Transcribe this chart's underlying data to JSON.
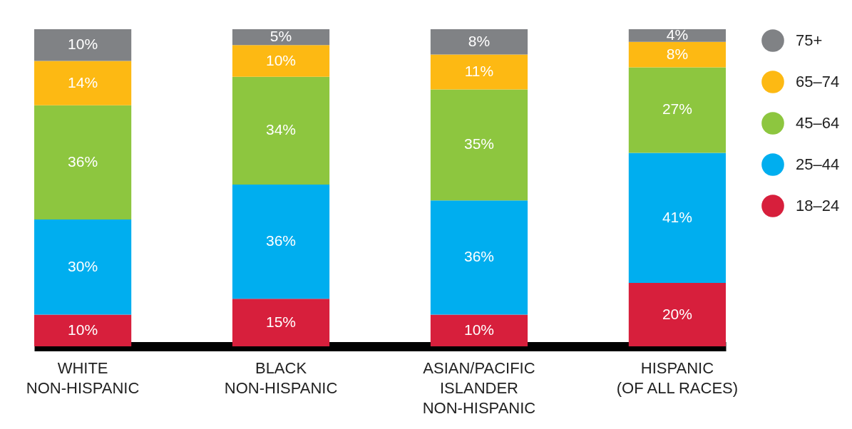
{
  "chart_data": {
    "type": "bar",
    "stacked": true,
    "legend": "right",
    "categories": [
      "WHITE\nNON-HISPANIC",
      "BLACK\nNON-HISPANIC",
      "ASIAN/PACIFIC\nISLANDER\nNON-HISPANIC",
      "HISPANIC\n(OF ALL RACES)"
    ],
    "series": [
      {
        "name": "18–24",
        "color": "#d71f3c",
        "values": [
          10,
          15,
          10,
          20
        ],
        "value_labels": [
          "10%",
          "15%",
          "10%",
          "20%"
        ]
      },
      {
        "name": "25–44",
        "color": "#00aeef",
        "values": [
          30,
          36,
          36,
          41
        ],
        "value_labels": [
          "30%",
          "36%",
          "36%",
          "41%"
        ]
      },
      {
        "name": "45–64",
        "color": "#8dc63f",
        "values": [
          36,
          34,
          35,
          27
        ],
        "value_labels": [
          "36%",
          "34%",
          "35%",
          "27%"
        ]
      },
      {
        "name": "65–74",
        "color": "#fdb913",
        "values": [
          14,
          10,
          11,
          8
        ],
        "value_labels": [
          "14%",
          "10%",
          "11%",
          "8%"
        ]
      },
      {
        "name": "75+",
        "color": "#808285",
        "values": [
          10,
          5,
          8,
          4
        ],
        "value_labels": [
          "10%",
          "5%",
          "8%",
          "4%"
        ]
      }
    ]
  }
}
